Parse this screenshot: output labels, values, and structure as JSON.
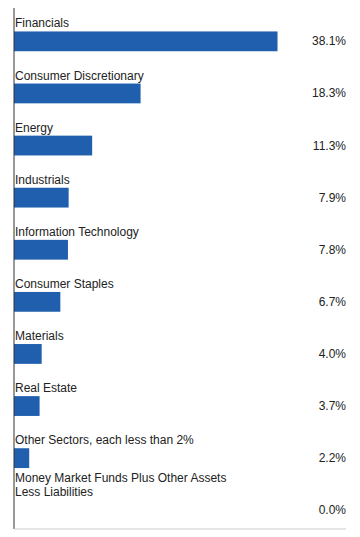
{
  "chart_data": {
    "type": "bar",
    "orientation": "horizontal",
    "categories": [
      "Financials",
      "Consumer Discretionary",
      "Energy",
      "Industrials",
      "Information Technology",
      "Consumer Staples",
      "Materials",
      "Real Estate",
      "Other Sectors, each less than 2%",
      "Money Market Funds Plus Other Assets\nLess Liabilities"
    ],
    "values": [
      38.1,
      18.3,
      11.3,
      7.9,
      7.8,
      6.7,
      4.0,
      3.7,
      2.2,
      0.0
    ],
    "value_labels": [
      "38.1%",
      "18.3%",
      "11.3%",
      "7.9%",
      "7.8%",
      "6.7%",
      "4.0%",
      "3.7%",
      "2.2%",
      "0.0%"
    ],
    "color": "#1F5FAD",
    "xlim": [
      0,
      48
    ],
    "data_labels": true,
    "tick_labels": false
  }
}
